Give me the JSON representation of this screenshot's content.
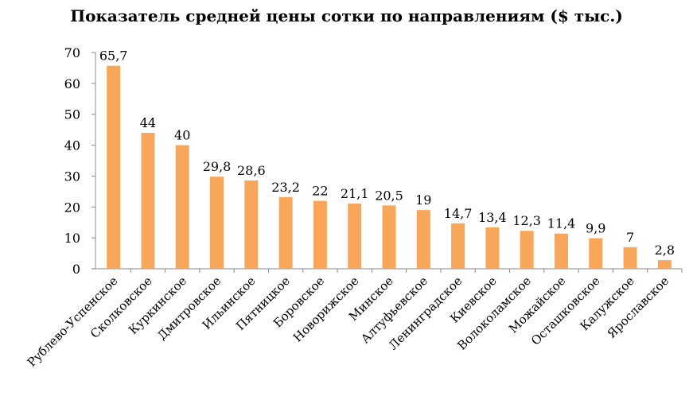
{
  "chart_data": {
    "type": "bar",
    "title": "Показатель средней цены сотки по направлениям ($ тыс.)",
    "xlabel": "",
    "ylabel": "",
    "ylim": [
      0,
      70
    ],
    "yticks": [
      0,
      10,
      20,
      30,
      40,
      50,
      60,
      70
    ],
    "grid": false,
    "bar_color": "#f8a65a",
    "categories": [
      "Рублево-Успенское",
      "Сколковское",
      "Куркинское",
      "Дмитровское",
      "Ильинское",
      "Пятницкое",
      "Боровское",
      "Новорижское",
      "Минское",
      "Алтуфьевское",
      "Ленинградское",
      "Киевское",
      "Волоколамское",
      "Можайское",
      "Осташковское",
      "Калужское",
      "Ярославское"
    ],
    "values": [
      65.7,
      44,
      40,
      29.8,
      28.6,
      23.2,
      22,
      21.1,
      20.5,
      19,
      14.7,
      13.4,
      12.3,
      11.4,
      9.9,
      7,
      2.8
    ],
    "data_labels": [
      "65,7",
      "44",
      "40",
      "29,8",
      "28,6",
      "23,2",
      "22",
      "21,1",
      "20,5",
      "19",
      "14,7",
      "13,4",
      "12,3",
      "11,4",
      "9,9",
      "7",
      "2,8"
    ]
  }
}
